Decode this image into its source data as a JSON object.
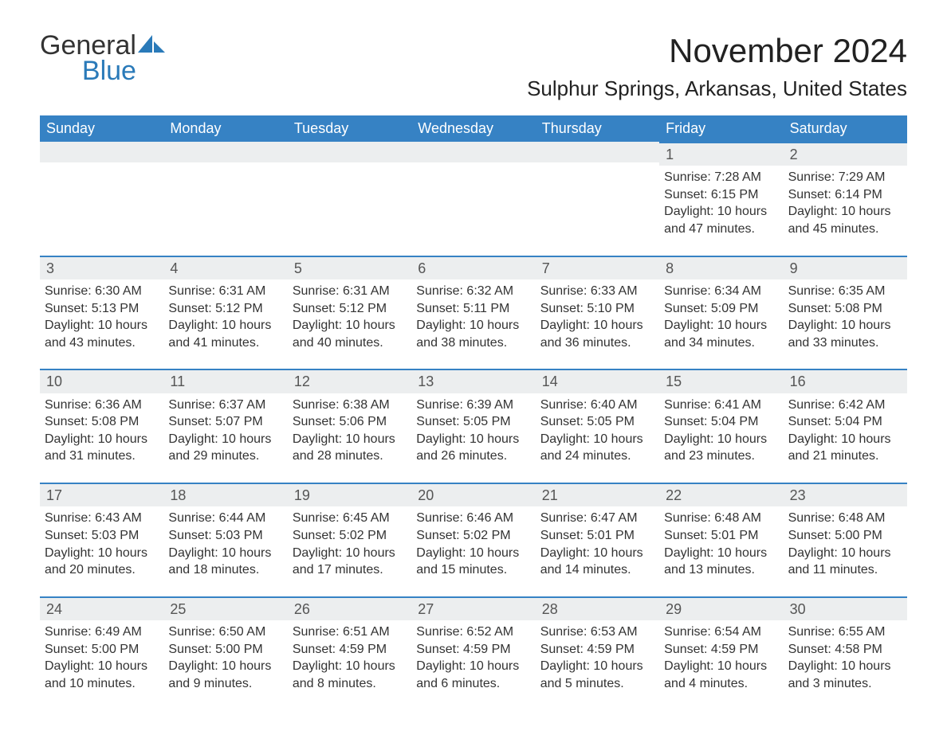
{
  "logo": {
    "word1": "General",
    "word2": "Blue",
    "accent_color": "#2a7ab9"
  },
  "title": "November 2024",
  "location": "Sulphur Springs, Arkansas, United States",
  "colors": {
    "header_bg": "#3682c4",
    "header_text": "#ffffff",
    "daynum_bg": "#eceeef",
    "daynum_border": "#3682c4",
    "body_text": "#333333",
    "page_bg": "#ffffff"
  },
  "days_of_week": [
    "Sunday",
    "Monday",
    "Tuesday",
    "Wednesday",
    "Thursday",
    "Friday",
    "Saturday"
  ],
  "weeks": [
    [
      null,
      null,
      null,
      null,
      null,
      {
        "n": "1",
        "sunrise": "7:28 AM",
        "sunset": "6:15 PM",
        "daylight": "10 hours and 47 minutes."
      },
      {
        "n": "2",
        "sunrise": "7:29 AM",
        "sunset": "6:14 PM",
        "daylight": "10 hours and 45 minutes."
      }
    ],
    [
      {
        "n": "3",
        "sunrise": "6:30 AM",
        "sunset": "5:13 PM",
        "daylight": "10 hours and 43 minutes."
      },
      {
        "n": "4",
        "sunrise": "6:31 AM",
        "sunset": "5:12 PM",
        "daylight": "10 hours and 41 minutes."
      },
      {
        "n": "5",
        "sunrise": "6:31 AM",
        "sunset": "5:12 PM",
        "daylight": "10 hours and 40 minutes."
      },
      {
        "n": "6",
        "sunrise": "6:32 AM",
        "sunset": "5:11 PM",
        "daylight": "10 hours and 38 minutes."
      },
      {
        "n": "7",
        "sunrise": "6:33 AM",
        "sunset": "5:10 PM",
        "daylight": "10 hours and 36 minutes."
      },
      {
        "n": "8",
        "sunrise": "6:34 AM",
        "sunset": "5:09 PM",
        "daylight": "10 hours and 34 minutes."
      },
      {
        "n": "9",
        "sunrise": "6:35 AM",
        "sunset": "5:08 PM",
        "daylight": "10 hours and 33 minutes."
      }
    ],
    [
      {
        "n": "10",
        "sunrise": "6:36 AM",
        "sunset": "5:08 PM",
        "daylight": "10 hours and 31 minutes."
      },
      {
        "n": "11",
        "sunrise": "6:37 AM",
        "sunset": "5:07 PM",
        "daylight": "10 hours and 29 minutes."
      },
      {
        "n": "12",
        "sunrise": "6:38 AM",
        "sunset": "5:06 PM",
        "daylight": "10 hours and 28 minutes."
      },
      {
        "n": "13",
        "sunrise": "6:39 AM",
        "sunset": "5:05 PM",
        "daylight": "10 hours and 26 minutes."
      },
      {
        "n": "14",
        "sunrise": "6:40 AM",
        "sunset": "5:05 PM",
        "daylight": "10 hours and 24 minutes."
      },
      {
        "n": "15",
        "sunrise": "6:41 AM",
        "sunset": "5:04 PM",
        "daylight": "10 hours and 23 minutes."
      },
      {
        "n": "16",
        "sunrise": "6:42 AM",
        "sunset": "5:04 PM",
        "daylight": "10 hours and 21 minutes."
      }
    ],
    [
      {
        "n": "17",
        "sunrise": "6:43 AM",
        "sunset": "5:03 PM",
        "daylight": "10 hours and 20 minutes."
      },
      {
        "n": "18",
        "sunrise": "6:44 AM",
        "sunset": "5:03 PM",
        "daylight": "10 hours and 18 minutes."
      },
      {
        "n": "19",
        "sunrise": "6:45 AM",
        "sunset": "5:02 PM",
        "daylight": "10 hours and 17 minutes."
      },
      {
        "n": "20",
        "sunrise": "6:46 AM",
        "sunset": "5:02 PM",
        "daylight": "10 hours and 15 minutes."
      },
      {
        "n": "21",
        "sunrise": "6:47 AM",
        "sunset": "5:01 PM",
        "daylight": "10 hours and 14 minutes."
      },
      {
        "n": "22",
        "sunrise": "6:48 AM",
        "sunset": "5:01 PM",
        "daylight": "10 hours and 13 minutes."
      },
      {
        "n": "23",
        "sunrise": "6:48 AM",
        "sunset": "5:00 PM",
        "daylight": "10 hours and 11 minutes."
      }
    ],
    [
      {
        "n": "24",
        "sunrise": "6:49 AM",
        "sunset": "5:00 PM",
        "daylight": "10 hours and 10 minutes."
      },
      {
        "n": "25",
        "sunrise": "6:50 AM",
        "sunset": "5:00 PM",
        "daylight": "10 hours and 9 minutes."
      },
      {
        "n": "26",
        "sunrise": "6:51 AM",
        "sunset": "4:59 PM",
        "daylight": "10 hours and 8 minutes."
      },
      {
        "n": "27",
        "sunrise": "6:52 AM",
        "sunset": "4:59 PM",
        "daylight": "10 hours and 6 minutes."
      },
      {
        "n": "28",
        "sunrise": "6:53 AM",
        "sunset": "4:59 PM",
        "daylight": "10 hours and 5 minutes."
      },
      {
        "n": "29",
        "sunrise": "6:54 AM",
        "sunset": "4:59 PM",
        "daylight": "10 hours and 4 minutes."
      },
      {
        "n": "30",
        "sunrise": "6:55 AM",
        "sunset": "4:58 PM",
        "daylight": "10 hours and 3 minutes."
      }
    ]
  ],
  "labels": {
    "sunrise": "Sunrise: ",
    "sunset": "Sunset: ",
    "daylight": "Daylight: "
  }
}
